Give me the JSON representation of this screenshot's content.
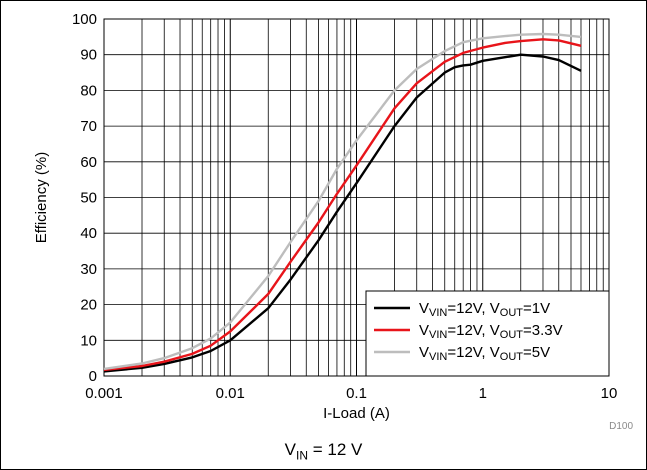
{
  "chart_data": {
    "type": "line",
    "xlabel": "I-Load (A)",
    "ylabel": "Efficiency (%)",
    "xscale": "log",
    "xlim": [
      0.001,
      10
    ],
    "ylim": [
      0,
      100
    ],
    "x_tick_labels": [
      "0.001",
      "0.01",
      "0.1",
      "1",
      "10"
    ],
    "y_tick_labels": [
      "0",
      "10",
      "20",
      "30",
      "40",
      "50",
      "60",
      "70",
      "80",
      "90",
      "100"
    ],
    "grid": true,
    "legend_position": "bottom-right",
    "series": [
      {
        "name_main": "V",
        "name_sub": "VIN",
        "name_mid": "=12V, V",
        "name_sub2": "OUT",
        "name_end": "=1V",
        "color": "#000000",
        "x": [
          0.001,
          0.002,
          0.003,
          0.005,
          0.007,
          0.01,
          0.02,
          0.03,
          0.05,
          0.07,
          0.1,
          0.2,
          0.3,
          0.5,
          0.6,
          0.7,
          0.8,
          1,
          1.5,
          2,
          3,
          4,
          6
        ],
        "y": [
          1.3,
          2.3,
          3.4,
          5.2,
          7.0,
          10.0,
          19.0,
          27.0,
          38.0,
          46.0,
          54.0,
          70.0,
          78.0,
          85.0,
          86.5,
          87.0,
          87.2,
          88.3,
          89.3,
          90.0,
          89.5,
          88.5,
          85.5
        ]
      },
      {
        "name_main": "V",
        "name_sub": "VIN",
        "name_mid": "=12V, V",
        "name_sub2": "OUT",
        "name_end": "=3.3V",
        "color": "#e8141a",
        "x": [
          0.001,
          0.002,
          0.003,
          0.005,
          0.007,
          0.01,
          0.02,
          0.03,
          0.05,
          0.07,
          0.1,
          0.2,
          0.3,
          0.5,
          0.7,
          1,
          1.5,
          2,
          3,
          4,
          6
        ],
        "y": [
          1.7,
          2.8,
          4.0,
          6.2,
          8.5,
          12.5,
          23.0,
          32.0,
          43.0,
          51.0,
          59.0,
          75.0,
          82.0,
          88.0,
          90.5,
          92.0,
          93.3,
          93.8,
          94.3,
          94.0,
          92.5
        ]
      },
      {
        "name_main": "V",
        "name_sub": "VIN",
        "name_mid": "=12V, V",
        "name_sub2": "OUT",
        "name_end": "=5V",
        "color": "#bdbdbd",
        "x": [
          0.001,
          0.002,
          0.003,
          0.005,
          0.007,
          0.01,
          0.02,
          0.03,
          0.05,
          0.07,
          0.1,
          0.2,
          0.3,
          0.5,
          0.7,
          1,
          1.5,
          2,
          3,
          4,
          6
        ],
        "y": [
          2.0,
          3.5,
          5.0,
          7.8,
          10.5,
          15.0,
          28.0,
          37.5,
          49.0,
          58.0,
          66.0,
          80.0,
          86.0,
          91.0,
          93.5,
          94.6,
          95.2,
          95.6,
          95.8,
          95.6,
          95.0
        ]
      }
    ]
  },
  "caption": {
    "main": "V",
    "sub": "IN",
    "rest": " = 12 V"
  },
  "figure_id": "D100"
}
